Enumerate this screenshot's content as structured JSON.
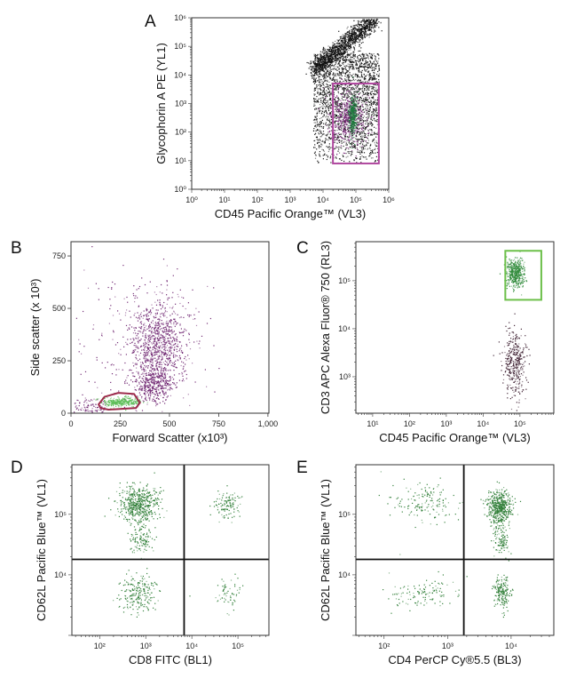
{
  "chart_data": [
    {
      "panel": "A",
      "type": "scatter",
      "xlabel": "CD45 Pacific Orange™ (VL3)",
      "ylabel": "Glycophorin A PE (YL1)",
      "xscale": "log",
      "yscale": "log",
      "xlim": [
        1,
        1000000
      ],
      "ylim": [
        1,
        1000000
      ],
      "xticks": [
        "10⁰",
        "10¹",
        "10²",
        "10³",
        "10⁴",
        "10⁵",
        "10⁶"
      ],
      "yticks": [
        "10⁰",
        "10¹",
        "10²",
        "10³",
        "10⁴",
        "10⁵",
        "10⁶"
      ],
      "populations": [
        {
          "color": "#111111",
          "kind": "uniform",
          "x_range": [
            5000,
            500000
          ],
          "y_range": [
            8,
            60000
          ],
          "n": 2200
        },
        {
          "color": "#111111",
          "kind": "band",
          "from": [
            5000,
            15000
          ],
          "to": [
            400000,
            1000000
          ],
          "sd_decades": 0.18,
          "n": 1500
        },
        {
          "color": "#7b2a7b",
          "kind": "cluster",
          "center": [
            55000,
            300
          ],
          "sd_decades": [
            0.28,
            0.5
          ],
          "n": 500
        },
        {
          "color": "#1f7a3e",
          "kind": "cluster",
          "center": [
            80000,
            400
          ],
          "sd_decades": [
            0.06,
            0.35
          ],
          "n": 320
        }
      ],
      "gates": [
        {
          "kind": "rect",
          "color": "#b0489f",
          "x": [
            20000,
            500000
          ],
          "y": [
            8,
            5000
          ]
        }
      ]
    },
    {
      "panel": "B",
      "type": "scatter",
      "xlabel": "Forward Scatter (x10³)",
      "ylabel": "Side scatter (x 10³)",
      "xscale": "linear",
      "yscale": "linear",
      "xlim": [
        0,
        1005
      ],
      "ylim": [
        0,
        818
      ],
      "xtick_values": [
        0,
        250,
        500,
        750,
        1000
      ],
      "xticks": [
        "0",
        "250",
        "500",
        "750",
        "1,000"
      ],
      "ytick_values": [
        0,
        250,
        500,
        750
      ],
      "yticks": [
        "0",
        "250",
        "500",
        "750"
      ],
      "populations": [
        {
          "color": "#6e2370",
          "kind": "cluster",
          "center": [
            440,
            330
          ],
          "sd": [
            70,
            105
          ],
          "n": 900
        },
        {
          "color": "#6e2370",
          "kind": "cluster",
          "center": [
            420,
            140
          ],
          "sd": [
            45,
            40
          ],
          "n": 320
        },
        {
          "color": "#6e2370",
          "kind": "cluster",
          "center": [
            360,
            320
          ],
          "sd": [
            170,
            190
          ],
          "n": 260
        },
        {
          "color": "#6e2370",
          "kind": "cluster",
          "center": [
            90,
            30
          ],
          "sd": [
            50,
            25
          ],
          "n": 100
        },
        {
          "color": "#5fbf5a",
          "kind": "cluster",
          "center": [
            250,
            55
          ],
          "sd": [
            45,
            11
          ],
          "n": 320
        }
      ],
      "gates": [
        {
          "kind": "polygon",
          "color": "#9c2a4a",
          "points": [
            [
              150,
              25
            ],
            [
              190,
              17
            ],
            [
              330,
              25
            ],
            [
              350,
              50
            ],
            [
              320,
              92
            ],
            [
              240,
              97
            ],
            [
              170,
              78
            ],
            [
              140,
              42
            ]
          ]
        }
      ]
    },
    {
      "panel": "C",
      "type": "scatter",
      "xlabel": "CD45 Pacific Orange™ (VL3)",
      "ylabel": "CD3 APC Alexa Fluor® 750 (RL3)",
      "xscale": "log",
      "yscale": "log",
      "xlim": [
        3.5,
        830000
      ],
      "ylim": [
        174,
        650000
      ],
      "xtick_values": [
        10,
        100,
        1000,
        10000,
        100000
      ],
      "xticks": [
        "10¹",
        "10²",
        "10³",
        "10⁴",
        "10⁵"
      ],
      "ytick_values": [
        1000,
        10000,
        100000
      ],
      "yticks": [
        "10³",
        "10⁴",
        "10⁵"
      ],
      "populations": [
        {
          "color": "#2f8a3a",
          "kind": "cluster",
          "center": [
            75000,
            150000
          ],
          "sd_decades": [
            0.12,
            0.15
          ],
          "n": 420
        },
        {
          "color": "#3b1c2e",
          "kind": "cluster",
          "center": [
            70000,
            2000
          ],
          "sd_decades": [
            0.15,
            0.35
          ],
          "n": 360
        }
      ],
      "gates": [
        {
          "kind": "rect",
          "color": "#6cc04a",
          "x": [
            40000,
            380000
          ],
          "y": [
            40000,
            420000
          ]
        }
      ]
    },
    {
      "panel": "D",
      "type": "scatter",
      "xlabel": "CD8 FITC (BL1)",
      "ylabel": "CD62L Pacific Blue™ (VL1)",
      "xscale": "log",
      "yscale": "log",
      "xlim": [
        25,
        470000
      ],
      "ylim": [
        1000,
        660000
      ],
      "xtick_values": [
        100,
        1000,
        10000,
        100000
      ],
      "xticks": [
        "10²",
        "10³",
        "10⁴",
        "10⁵"
      ],
      "ytick_values": [
        10000,
        100000
      ],
      "yticks": [
        "10⁴",
        "10⁵"
      ],
      "populations": [
        {
          "color": "#2e7d36",
          "kind": "cluster",
          "center": [
            700,
            150000
          ],
          "sd_decades": [
            0.22,
            0.15
          ],
          "n": 520
        },
        {
          "color": "#2e7d36",
          "kind": "cluster",
          "center": [
            800,
            40000
          ],
          "sd_decades": [
            0.12,
            0.12
          ],
          "n": 120
        },
        {
          "color": "#2e7d36",
          "kind": "cluster",
          "center": [
            700,
            5000
          ],
          "sd_decades": [
            0.2,
            0.15
          ],
          "n": 220
        },
        {
          "color": "#2e7d36",
          "kind": "cluster",
          "center": [
            55000,
            150000
          ],
          "sd_decades": [
            0.13,
            0.13
          ],
          "n": 120
        },
        {
          "color": "#2e7d36",
          "kind": "cluster",
          "center": [
            60000,
            5000
          ],
          "sd_decades": [
            0.15,
            0.15
          ],
          "n": 60
        }
      ],
      "gates": [
        {
          "kind": "quadrant",
          "color": "#111111",
          "x": 6800,
          "y": 18000
        }
      ]
    },
    {
      "panel": "E",
      "type": "scatter",
      "xlabel": "CD4 PerCP Cy®5.5 (BL3)",
      "ylabel": "CD62L Pacific Blue™ (VL1)",
      "xscale": "log",
      "yscale": "log",
      "xlim": [
        36,
        47000
      ],
      "ylim": [
        1000,
        660000
      ],
      "xtick_values": [
        100,
        1000,
        10000
      ],
      "xticks": [
        "10²",
        "10³",
        "10⁴"
      ],
      "ytick_values": [
        10000,
        100000
      ],
      "yticks": [
        "10⁴",
        "10⁵"
      ],
      "populations": [
        {
          "color": "#2e7d36",
          "kind": "cluster",
          "center": [
            6500,
            130000
          ],
          "sd_decades": [
            0.1,
            0.14
          ],
          "n": 520
        },
        {
          "color": "#2e7d36",
          "kind": "cluster",
          "center": [
            7000,
            5000
          ],
          "sd_decades": [
            0.07,
            0.15
          ],
          "n": 180
        },
        {
          "color": "#2e7d36",
          "kind": "cluster",
          "center": [
            7000,
            35000
          ],
          "sd_decades": [
            0.06,
            0.12
          ],
          "n": 100
        },
        {
          "color": "#2e7d36",
          "kind": "cluster",
          "center": [
            450,
            150000
          ],
          "sd_decades": [
            0.25,
            0.18
          ],
          "n": 150
        },
        {
          "color": "#2e7d36",
          "kind": "cluster",
          "center": [
            450,
            5000
          ],
          "sd_decades": [
            0.3,
            0.15
          ],
          "n": 120
        }
      ],
      "gates": [
        {
          "kind": "quadrant",
          "color": "#111111",
          "x": 1800,
          "y": 18000
        }
      ]
    }
  ]
}
